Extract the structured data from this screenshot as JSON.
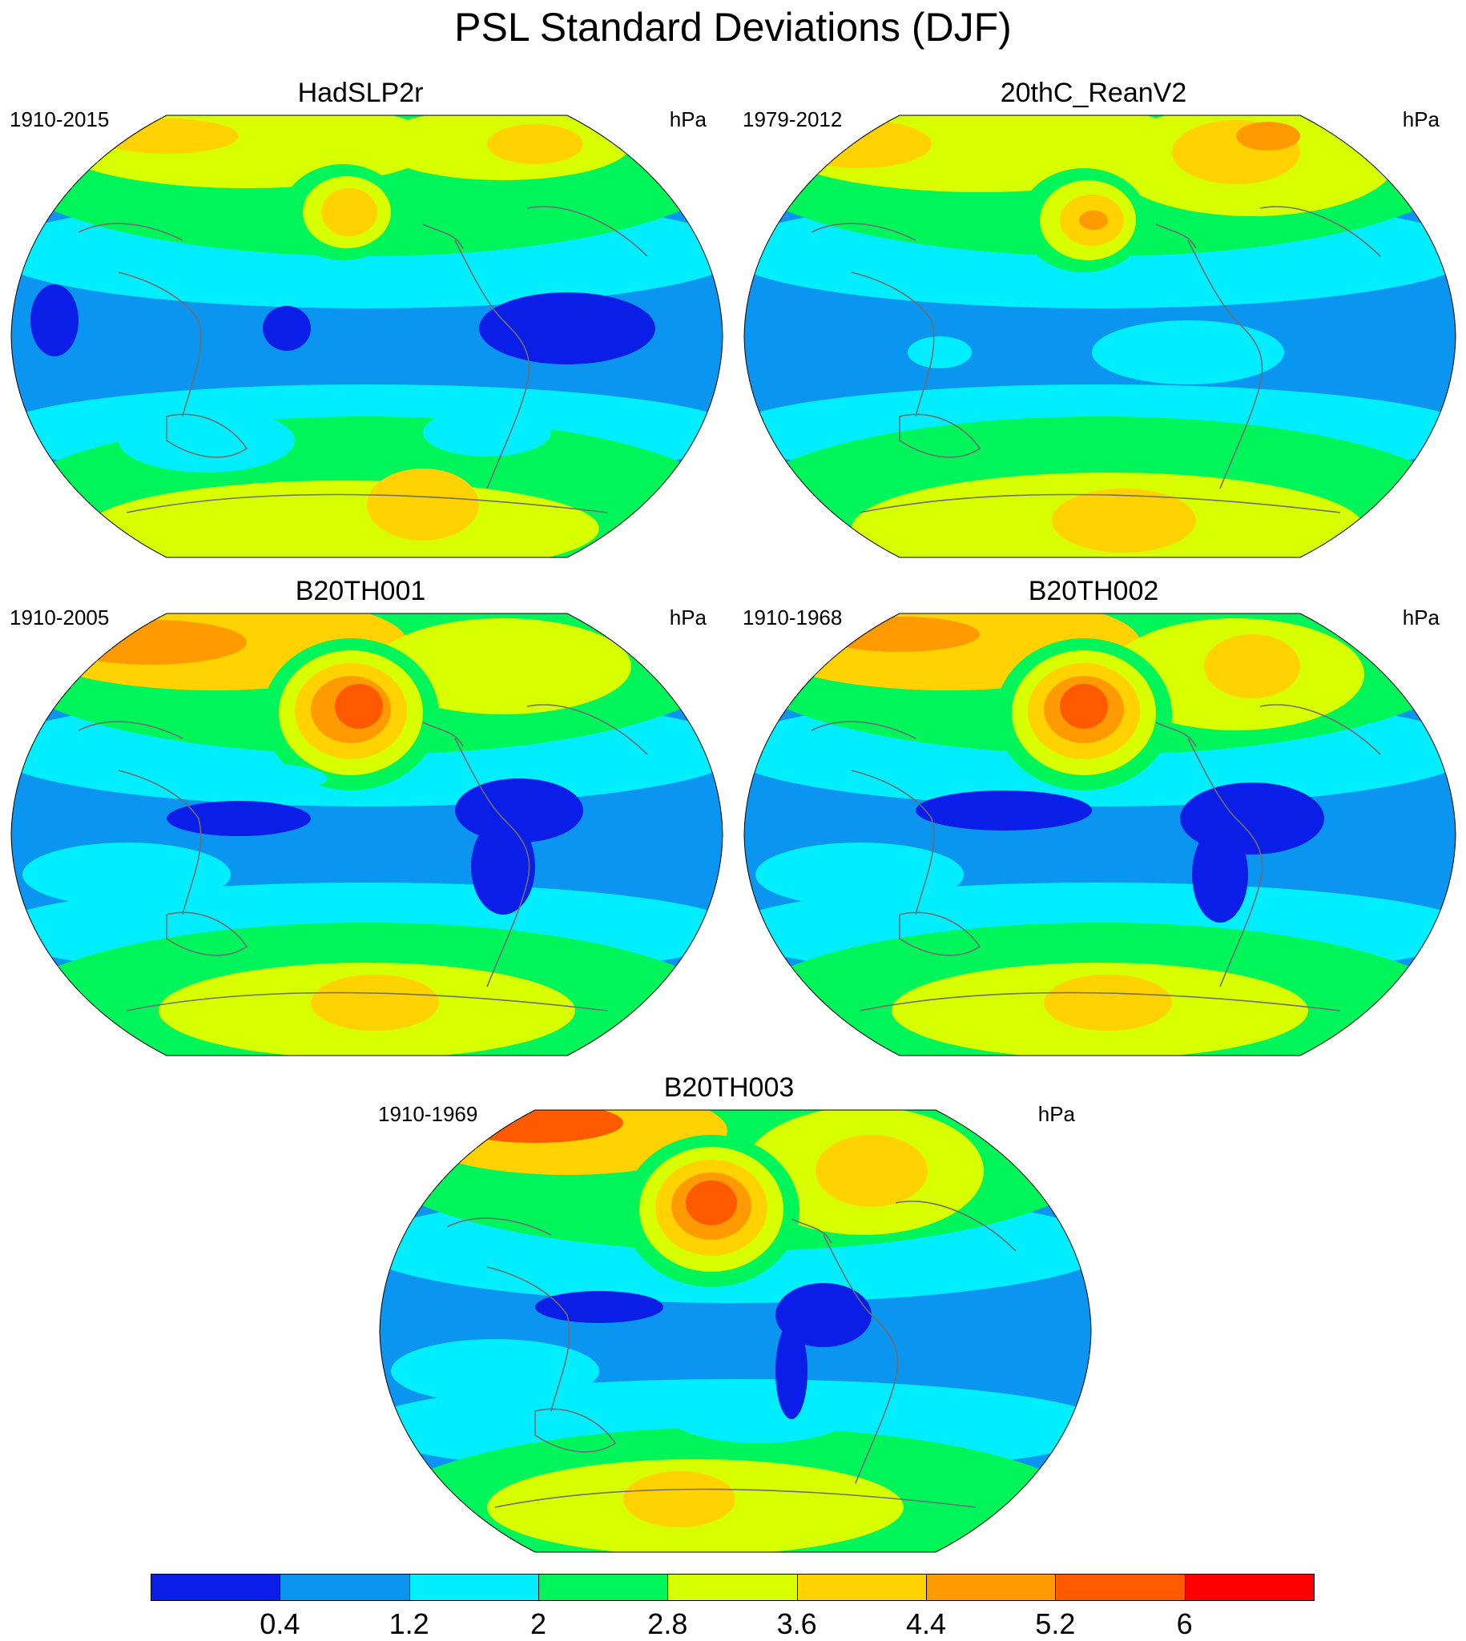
{
  "title": "PSL Standard Deviations (DJF)",
  "panels": [
    {
      "name": "HadSLP2r",
      "period": "1910-2015",
      "units": "hPa"
    },
    {
      "name": "20thC_ReanV2",
      "period": "1979-2012",
      "units": "hPa"
    },
    {
      "name": "B20TH001",
      "period": "1910-2005",
      "units": "hPa"
    },
    {
      "name": "B20TH002",
      "period": "1910-1968",
      "units": "hPa"
    },
    {
      "name": "B20TH003",
      "period": "1910-1969",
      "units": "hPa"
    }
  ],
  "colorbar": {
    "levels": [
      "0.4",
      "1.2",
      "2",
      "2.8",
      "3.6",
      "4.4",
      "5.2",
      "6"
    ],
    "colors": [
      "#0a1ee8",
      "#0a96f0",
      "#00eeff",
      "#00f55a",
      "#d7ff00",
      "#ffd200",
      "#ff9b00",
      "#ff5a00",
      "#ff0000"
    ]
  },
  "palette": {
    "ocean": "#0a96f0",
    "coast": "#6e6e6e"
  }
}
